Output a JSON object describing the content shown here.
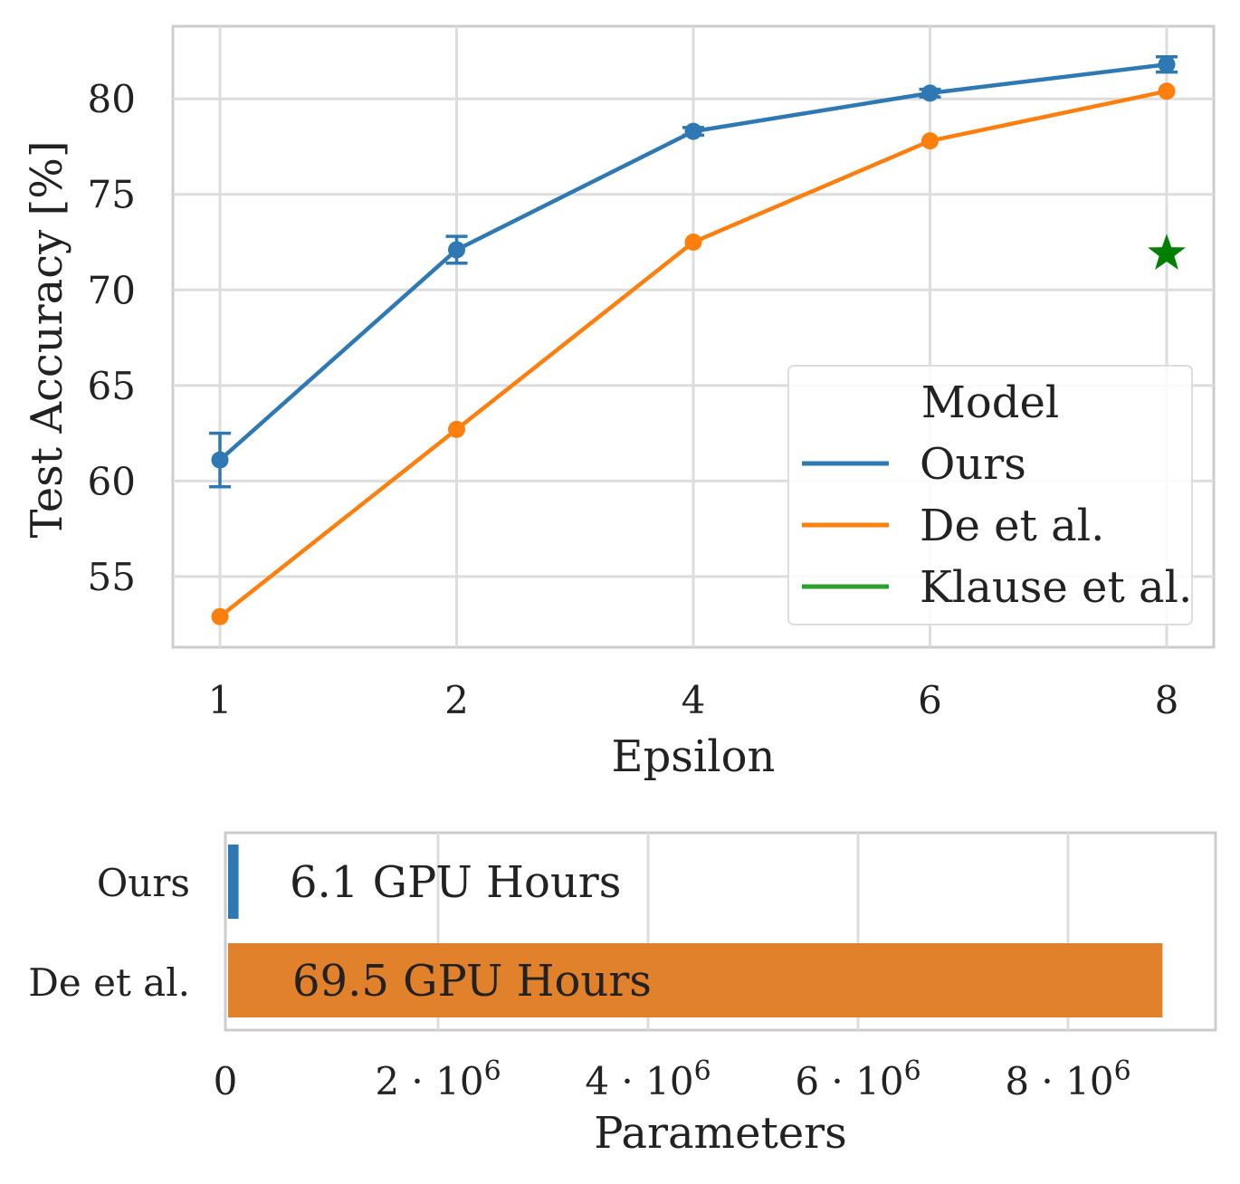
{
  "chart_data": [
    {
      "type": "line",
      "xlabel": "Epsilon",
      "ylabel": "Test Accuracy [%]",
      "x": [
        1,
        2,
        4,
        6,
        8
      ],
      "x_tick_labels": [
        "1",
        "2",
        "4",
        "6",
        "8"
      ],
      "y_ticks": [
        55,
        60,
        65,
        70,
        75,
        80
      ],
      "y_tick_labels": [
        "55",
        "60",
        "65",
        "70",
        "75",
        "80"
      ],
      "ylim": [
        51.3,
        83.8
      ],
      "grid": true,
      "legend": {
        "title": "Model",
        "position": "lower-right",
        "entries": [
          "Ours",
          "De et al.",
          "Klause et al."
        ]
      },
      "series": [
        {
          "name": "Ours",
          "color": "#2e78b4",
          "values": [
            61.1,
            72.1,
            78.3,
            80.3,
            81.8
          ],
          "error": [
            1.4,
            0.7,
            0.2,
            0.2,
            0.4
          ]
        },
        {
          "name": "De et al.",
          "color": "#ff7f0e",
          "values": [
            52.9,
            62.7,
            72.5,
            77.8,
            80.4
          ]
        }
      ],
      "markers": [
        {
          "name": "Klause et al.",
          "color": "#008000",
          "legend_color": "#2ca02c",
          "x": 8,
          "y": 71.9,
          "shape": "star"
        }
      ]
    },
    {
      "type": "bar",
      "orientation": "horizontal",
      "xlabel": "Parameters",
      "categories": [
        "Ours",
        "De et al."
      ],
      "values": [
        100000,
        8900000
      ],
      "colors": [
        "#2e78b4",
        "#e1812c"
      ],
      "bar_labels": [
        "6.1 GPU Hours",
        "69.5 GPU Hours"
      ],
      "xlim": [
        0,
        9400000
      ],
      "x_ticks": [
        0,
        2000000,
        4000000,
        6000000,
        8000000
      ],
      "x_tick_labels": [
        {
          "base": "0",
          "exp": ""
        },
        {
          "base": "2 · 10",
          "exp": "6"
        },
        {
          "base": "4 · 10",
          "exp": "6"
        },
        {
          "base": "6 · 10",
          "exp": "6"
        },
        {
          "base": "8 · 10",
          "exp": "6"
        }
      ],
      "grid": true
    }
  ]
}
